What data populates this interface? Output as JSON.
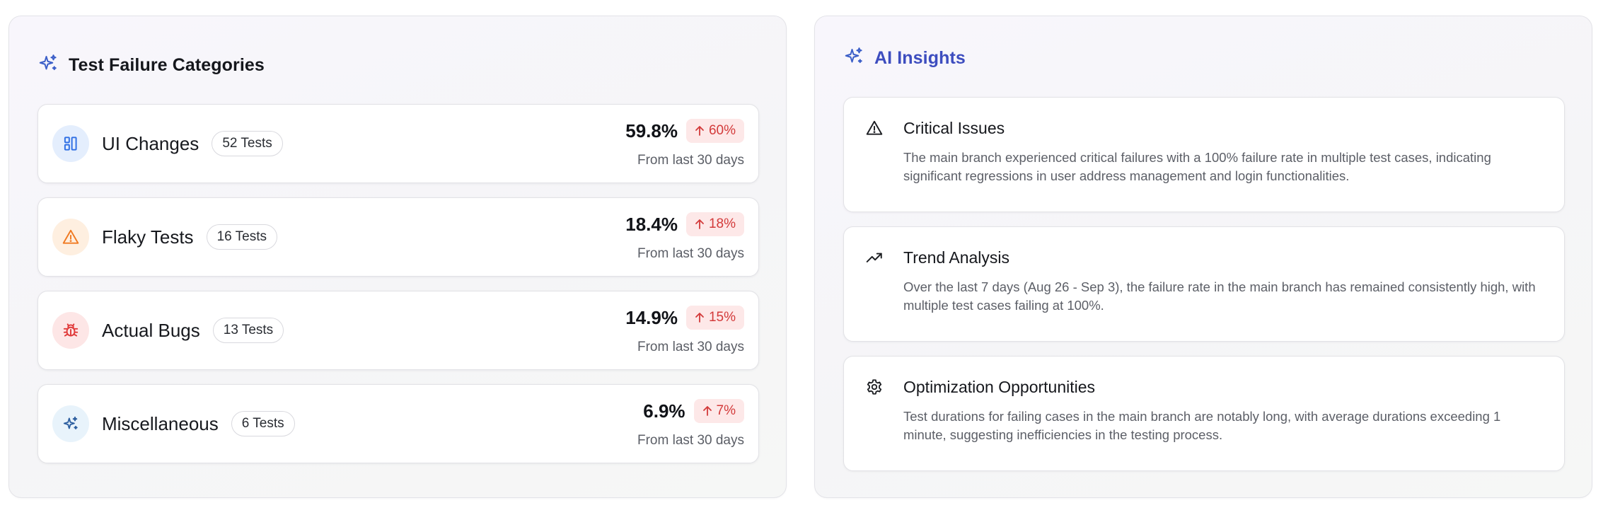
{
  "failure_panel": {
    "title": "Test Failure Categories",
    "icon": "sparkles-icon",
    "categories": [
      {
        "name": "UI Changes",
        "badge": "52 Tests",
        "percent": "59.8%",
        "change": "60%",
        "sub": "From last 30 days",
        "icon": "layout-icon",
        "color": "#2f6fe4"
      },
      {
        "name": "Flaky Tests",
        "badge": "16 Tests",
        "percent": "18.4%",
        "change": "18%",
        "sub": "From last 30 days",
        "icon": "warning-icon",
        "color": "#f07a22"
      },
      {
        "name": "Actual Bugs",
        "badge": "13 Tests",
        "percent": "14.9%",
        "change": "15%",
        "sub": "From last 30 days",
        "icon": "bug-icon",
        "color": "#e03a3a"
      },
      {
        "name": "Miscellaneous",
        "badge": "6 Tests",
        "percent": "6.9%",
        "change": "7%",
        "sub": "From last 30 days",
        "icon": "sparkles-icon",
        "color": "#2d5fa0"
      }
    ]
  },
  "insights_panel": {
    "title": "AI Insights",
    "icon": "sparkles-icon",
    "accent": "#3d4dbf",
    "items": [
      {
        "title": "Critical Issues",
        "icon": "warning-icon",
        "text": "The main branch experienced critical failures with a 100% failure rate in multiple test cases, indicating significant regressions in user address management and login functionalities."
      },
      {
        "title": "Trend Analysis",
        "icon": "trending-up-icon",
        "text": "Over the last 7 days (Aug 26 - Sep 3), the failure rate in the main branch has remained consistently high, with multiple test cases failing at 100%."
      },
      {
        "title": "Optimization Opportunities",
        "icon": "gear-icon",
        "text": "Test durations for failing cases in the main branch are notably long, with average durations exceeding 1 minute, suggesting inefficiencies in the testing process."
      }
    ]
  }
}
